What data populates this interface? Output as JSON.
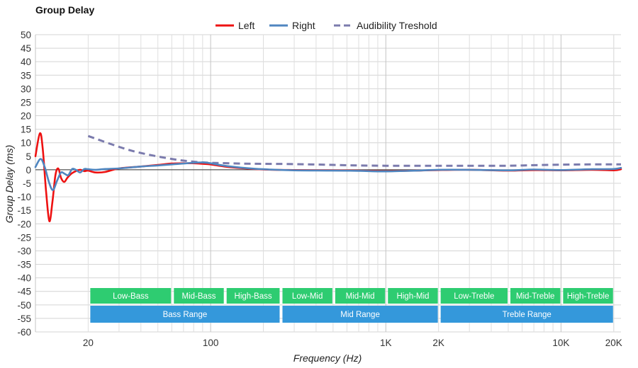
{
  "chart_data": {
    "type": "line",
    "title": "Group Delay",
    "xlabel": "Frequency (Hz)",
    "ylabel": "Group Delay (ms)",
    "x_scale": "log",
    "xlim": [
      10,
      22000
    ],
    "ylim": [
      -60,
      50
    ],
    "grid": true,
    "legend_position": "top-center",
    "x_tick_labels": [
      {
        "value": 20,
        "label": "20"
      },
      {
        "value": 100,
        "label": "100"
      },
      {
        "value": 1000,
        "label": "1K"
      },
      {
        "value": 2000,
        "label": "2K"
      },
      {
        "value": 10000,
        "label": "10K"
      },
      {
        "value": 20000,
        "label": "20K"
      }
    ],
    "y_ticks": [
      50,
      45,
      40,
      35,
      30,
      25,
      20,
      15,
      10,
      5,
      0,
      -5,
      -10,
      -15,
      -20,
      -25,
      -30,
      -35,
      -40,
      -45,
      -50,
      -55,
      -60
    ],
    "series": [
      {
        "name": "Left",
        "color": "#ee1111",
        "style": "solid",
        "x": [
          10,
          10.6,
          11,
          11.5,
          12,
          12.5,
          13,
          13.5,
          14,
          14.6,
          15.2,
          16,
          17,
          18,
          19,
          20,
          22,
          25,
          30,
          40,
          50,
          60,
          70,
          80,
          90,
          100,
          120,
          150,
          200,
          300,
          500,
          700,
          1000,
          1500,
          2000,
          3000,
          5000,
          7000,
          10000,
          15000,
          20000,
          22000
        ],
        "y": [
          5,
          13.5,
          8,
          -8,
          -19,
          -12,
          -2,
          0.5,
          -3,
          -4.5,
          -3,
          -1.5,
          -0.5,
          0,
          -0.5,
          -0.3,
          -1,
          -0.8,
          0.5,
          1.2,
          1.8,
          2.3,
          2.4,
          2.4,
          2.2,
          2,
          1.2,
          0.6,
          0.1,
          -0.1,
          -0.2,
          -0.3,
          -0.5,
          -0.3,
          -0.1,
          0,
          -0.3,
          -0.1,
          -0.2,
          0,
          -0.2,
          0.2
        ]
      },
      {
        "name": "Right",
        "color": "#4f86c0",
        "style": "solid",
        "x": [
          10,
          10.7,
          11.3,
          12,
          12.6,
          13.3,
          14,
          14.7,
          15.4,
          16.2,
          17,
          18,
          19,
          20,
          22,
          25,
          30,
          40,
          50,
          60,
          70,
          80,
          90,
          100,
          120,
          150,
          200,
          300,
          500,
          700,
          1000,
          1500,
          2000,
          3000,
          5000,
          7000,
          10000,
          15000,
          20000,
          22000
        ],
        "y": [
          1,
          4,
          1,
          -5,
          -7.5,
          -4,
          -1,
          -1.5,
          -2,
          0.3,
          0,
          -1,
          0.3,
          0.2,
          0,
          0.3,
          0.5,
          1.2,
          1.6,
          2,
          2.3,
          2.6,
          2.7,
          2.4,
          1.5,
          0.8,
          0.2,
          -0.2,
          -0.3,
          -0.4,
          -0.6,
          -0.3,
          0,
          0,
          -0.2,
          0.1,
          -0.1,
          0.2,
          0.3,
          0.7
        ]
      },
      {
        "name": "Audibility Treshold",
        "color": "#7b7bad",
        "style": "dashed",
        "x": [
          20,
          30,
          40,
          60,
          80,
          100,
          150,
          200,
          300,
          500,
          700,
          1000,
          1500,
          2000,
          3000,
          5000,
          7000,
          10000,
          15000,
          20000,
          22000
        ],
        "y": [
          12.5,
          8.5,
          6.2,
          4,
          3,
          2.6,
          2.3,
          2.2,
          2.1,
          1.8,
          1.6,
          1.5,
          1.5,
          1.5,
          1.5,
          1.5,
          1.7,
          1.9,
          2,
          2,
          2
        ]
      }
    ],
    "bands": [
      {
        "row": 1,
        "label": "Low-Bass",
        "from": 20,
        "to": 60,
        "color": "#2ecc71"
      },
      {
        "row": 1,
        "label": "Mid-Bass",
        "from": 60,
        "to": 120,
        "color": "#2ecc71"
      },
      {
        "row": 1,
        "label": "High-Bass",
        "from": 120,
        "to": 250,
        "color": "#2ecc71"
      },
      {
        "row": 1,
        "label": "Low-Mid",
        "from": 250,
        "to": 500,
        "color": "#2ecc71"
      },
      {
        "row": 1,
        "label": "Mid-Mid",
        "from": 500,
        "to": 1000,
        "color": "#2ecc71"
      },
      {
        "row": 1,
        "label": "High-Mid",
        "from": 1000,
        "to": 2000,
        "color": "#2ecc71"
      },
      {
        "row": 1,
        "label": "Low-Treble",
        "from": 2000,
        "to": 5000,
        "color": "#2ecc71"
      },
      {
        "row": 1,
        "label": "Mid-Treble",
        "from": 5000,
        "to": 10000,
        "color": "#2ecc71"
      },
      {
        "row": 1,
        "label": "High-Treble",
        "from": 10000,
        "to": 20000,
        "color": "#2ecc71"
      },
      {
        "row": 2,
        "label": "Bass Range",
        "from": 20,
        "to": 250,
        "color": "#3498db"
      },
      {
        "row": 2,
        "label": "Mid Range",
        "from": 250,
        "to": 2000,
        "color": "#3498db"
      },
      {
        "row": 2,
        "label": "Treble Range",
        "from": 2000,
        "to": 20000,
        "color": "#3498db"
      }
    ]
  }
}
